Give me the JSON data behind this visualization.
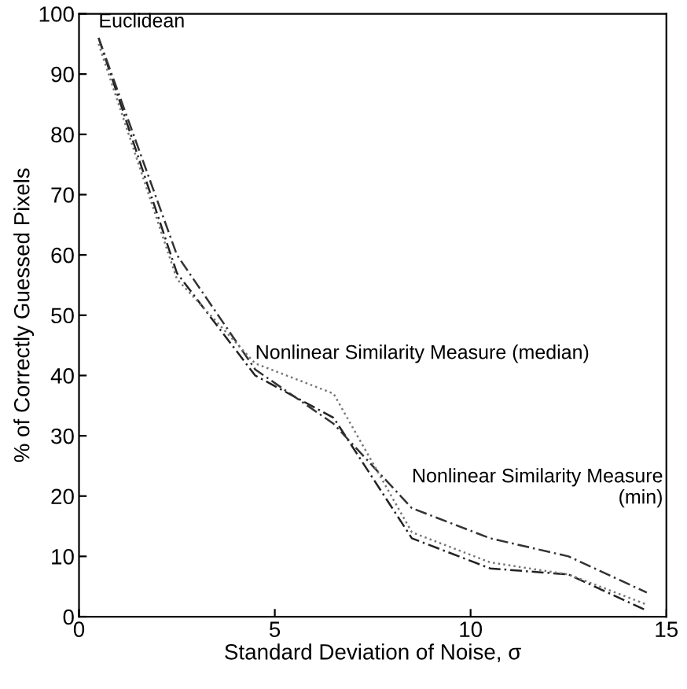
{
  "chart_data": {
    "type": "line",
    "xlabel": "Standard Deviation of Noise, σ",
    "ylabel": "% of Correctly Guessed Pixels",
    "x": [
      0.5,
      2.5,
      4.5,
      6.5,
      8.5,
      10.5,
      12.5,
      14.5
    ],
    "series": [
      {
        "color": "#222222",
        "line_style": "dashed",
        "values": [
          96,
          57,
          40,
          33,
          13,
          8,
          7,
          1
        ]
      },
      {
        "color": "#333333",
        "line_style": "dashed",
        "values": [
          96,
          60,
          41,
          32,
          18,
          13,
          10,
          4
        ]
      },
      {
        "color": "#777777",
        "line_style": "dotted",
        "values": [
          95,
          56,
          42,
          37,
          14,
          9,
          7,
          2
        ]
      }
    ],
    "annotations": [
      {
        "text": "Euclidean",
        "x": 0.5,
        "y": 96
      },
      {
        "text": "Nonlinear Similarity Measure (median)",
        "x": 4.5,
        "y": 41
      },
      {
        "text": "Nonlinear Similarity Measure\n(min)",
        "x": 8.5,
        "y": 17
      }
    ],
    "xlim": [
      0,
      15
    ],
    "xticks": [
      0,
      5,
      10,
      15
    ],
    "ylim": [
      0,
      100
    ],
    "yticks": [
      0,
      10,
      20,
      30,
      40,
      50,
      60,
      70,
      80,
      90,
      100
    ],
    "grid": false,
    "marker": "none"
  }
}
